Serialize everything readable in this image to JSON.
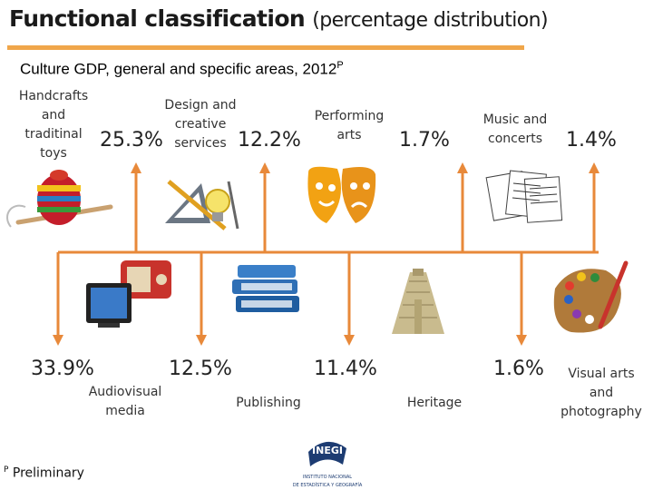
{
  "header": {
    "title_main": "Functional classification",
    "title_paren": "(percentage distribution)",
    "subtitle": "Culture GDP, general and specific areas, 2012",
    "subtitle_sup": "P"
  },
  "colors": {
    "accent": "#f0a64a",
    "arrow": "#e8893a"
  },
  "top_areas": [
    {
      "label": "Handcrafts and traditinal toys",
      "pct": "25.3%",
      "icon": "spinning-top-icon"
    },
    {
      "label": "Design and creative services",
      "pct": "12.2%",
      "icon": "design-tools-icon"
    },
    {
      "label": "Performing arts",
      "pct": "1.7%",
      "icon": "theater-masks-icon"
    },
    {
      "label": "Music and concerts",
      "pct": "1.4%",
      "icon": "sheet-music-icon"
    }
  ],
  "bottom_areas": [
    {
      "label": "Audiovisual media",
      "pct": "33.9%",
      "icon": "tv-radio-icon"
    },
    {
      "label": "Publishing",
      "pct": "12.5%",
      "icon": "books-icon"
    },
    {
      "label": "Heritage",
      "pct": "11.4%",
      "icon": "pyramid-icon"
    },
    {
      "label": "Visual arts and photography",
      "pct": "1.6%",
      "icon": "paint-palette-icon"
    }
  ],
  "logo": {
    "name": "INEGI",
    "line1": "INSTITUTO NACIONAL",
    "line2": "DE ESTADÍSTICA Y GEOGRAFÍA"
  },
  "footnote": {
    "sup": "P",
    "text": "Preliminary"
  }
}
